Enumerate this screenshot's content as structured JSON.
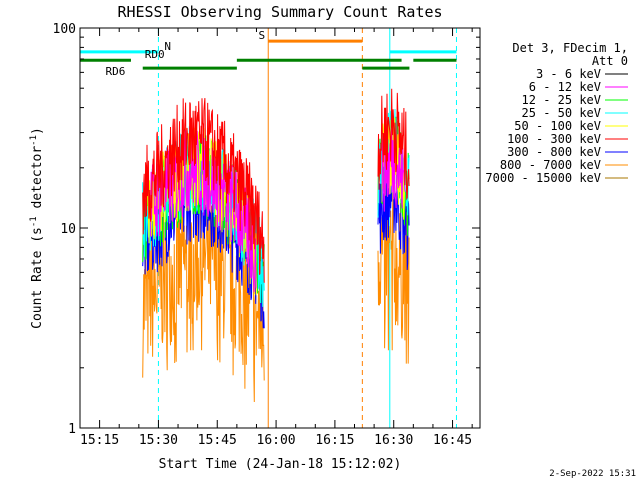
{
  "chart_data": {
    "type": "line",
    "title": "RHESSI Observing Summary Count Rates",
    "xlabel": "Start Time (24-Jan-18 15:12:02)",
    "ylabel_main": "Count Rate (s",
    "ylabel_sup1": "-1",
    "ylabel_mid": " detector",
    "ylabel_sup2": "-1",
    "ylabel_end": ")",
    "y_scale": "log",
    "ylim": [
      1,
      100
    ],
    "xlim": [
      "15:10",
      "16:52"
    ],
    "x_ticks": [
      "15:15",
      "15:30",
      "15:45",
      "16:00",
      "16:15",
      "16:30",
      "16:45"
    ],
    "y_ticks": [
      "1",
      "10",
      "100"
    ],
    "legend_placement": "right",
    "legend_header": [
      "Det 3, FDecim 1,",
      "Att 0"
    ],
    "series": [
      {
        "name": "3 - 6 keV",
        "color": "#000000",
        "segments": []
      },
      {
        "name": "6 - 12 keV",
        "color": "#ff00ff",
        "segments": [
          {
            "t": [
              "15:28",
              "15:33",
              "15:38",
              "15:43",
              "15:48",
              "15:52",
              "15:55"
            ],
            "y": [
              13,
              16,
              20,
              18,
              14,
              10,
              7
            ]
          },
          {
            "t": [
              "16:27",
              "16:30",
              "16:33"
            ],
            "y": [
              19,
              22,
              16
            ]
          }
        ]
      },
      {
        "name": "12 - 25 keV",
        "color": "#00ff00",
        "segments": [
          {
            "t": [
              "15:26",
              "15:30",
              "15:34",
              "15:38",
              "15:42",
              "15:46",
              "15:50",
              "15:54",
              "15:57"
            ],
            "y": [
              10,
              13,
              16,
              19,
              18,
              15,
              12,
              9,
              6
            ]
          },
          {
            "t": [
              "16:26",
              "16:28",
              "16:30",
              "16:32",
              "16:34"
            ],
            "y": [
              17,
              22,
              24,
              19,
              14
            ]
          }
        ]
      },
      {
        "name": "25 - 50 keV",
        "color": "#00ffff",
        "segments": [
          {
            "t": [
              "15:26",
              "15:30",
              "15:34",
              "15:38",
              "15:42",
              "15:46",
              "15:50",
              "15:54",
              "15:57"
            ],
            "y": [
              11,
              14,
              17,
              20,
              19,
              16,
              12,
              9,
              6
            ]
          },
          {
            "t": [
              "16:26",
              "16:28",
              "16:30",
              "16:32",
              "16:34"
            ],
            "y": [
              18,
              23,
              25,
              20,
              15
            ]
          }
        ]
      },
      {
        "name": "50 - 100 keV",
        "color": "#ffff00",
        "segments": [
          {
            "t": [
              "15:27",
              "15:31",
              "15:35",
              "15:39",
              "15:43",
              "15:47",
              "15:51",
              "15:55"
            ],
            "y": [
              12,
              15,
              18,
              21,
              19,
              15,
              11,
              7
            ]
          },
          {
            "t": [
              "16:27",
              "16:30",
              "16:33"
            ],
            "y": [
              20,
              24,
              17
            ]
          }
        ]
      },
      {
        "name": "100 - 300 keV",
        "color": "#ff0000",
        "segments": [
          {
            "t": [
              "15:26",
              "15:30",
              "15:34",
              "15:38",
              "15:42",
              "15:46",
              "15:50",
              "15:54",
              "15:57"
            ],
            "y": [
              15,
              19,
              24,
              29,
              27,
              22,
              17,
              12,
              8
            ]
          },
          {
            "t": [
              "16:26",
              "16:28",
              "16:30",
              "16:32",
              "16:34"
            ],
            "y": [
              25,
              31,
              33,
              27,
              20
            ]
          }
        ]
      },
      {
        "name": "300 - 800 keV",
        "color": "#0000ff",
        "segments": [
          {
            "t": [
              "15:26",
              "15:30",
              "15:34",
              "15:38",
              "15:42",
              "15:46",
              "15:50",
              "15:54",
              "15:57"
            ],
            "y": [
              8,
              10,
              12,
              14,
              14,
              12,
              9,
              7,
              5
            ]
          },
          {
            "t": [
              "16:26",
              "16:28",
              "16:30",
              "16:32",
              "16:34"
            ],
            "y": [
              11,
              14,
              15,
              12,
              9
            ]
          }
        ]
      },
      {
        "name": "800 - 7000 keV",
        "color": "#ff8c00",
        "segments": [
          {
            "t": [
              "15:26",
              "15:30",
              "15:34",
              "15:38",
              "15:42",
              "15:46",
              "15:50",
              "15:54",
              "15:57"
            ],
            "y": [
              4,
              5,
              6,
              7,
              7,
              6,
              5,
              4,
              3
            ]
          },
          {
            "t": [
              "16:26",
              "16:28",
              "16:30",
              "16:32",
              "16:34"
            ],
            "y": [
              8,
              7,
              7,
              6,
              6
            ]
          }
        ]
      },
      {
        "name": "7000 - 15000 keV",
        "color": "#aa7700",
        "segments": []
      }
    ],
    "annotations": {
      "bars": [
        {
          "label": "N",
          "color": "#00ffff",
          "y": 76,
          "t0": "15:10",
          "t1": "15:30",
          "label_t": "15:31"
        },
        {
          "label": "",
          "color": "#00ffff",
          "y": 76,
          "t0": "16:29",
          "t1": "16:46",
          "label_t": ""
        },
        {
          "label": "RD0",
          "color": "#008000",
          "y": 69,
          "t0": "15:10",
          "t1": "15:23",
          "label_t": "15:26"
        },
        {
          "label": "",
          "color": "#008000",
          "y": 69,
          "t0": "15:50",
          "t1": "16:32",
          "label_t": ""
        },
        {
          "label": "",
          "color": "#008000",
          "y": 69,
          "t0": "16:35",
          "t1": "16:46",
          "label_t": ""
        },
        {
          "label": "RD6",
          "color": "#008000",
          "y": 63,
          "t0": "15:26",
          "t1": "15:50",
          "label_t": "15:16"
        },
        {
          "label": "",
          "color": "#008000",
          "y": 63,
          "t0": "16:22",
          "t1": "16:34",
          "label_t": ""
        },
        {
          "label": "S",
          "color": "#ff8000",
          "y": 86,
          "t0": "15:58",
          "t1": "16:22",
          "label_t": "15:55"
        }
      ],
      "vlines": [
        {
          "t": "15:10",
          "color": "#00ffff",
          "dash": false
        },
        {
          "t": "15:30",
          "color": "#00ffff",
          "dash": true
        },
        {
          "t": "16:29",
          "color": "#00ffff",
          "dash": false
        },
        {
          "t": "16:46",
          "color": "#00ffff",
          "dash": true
        },
        {
          "t": "15:58",
          "color": "#ff8000",
          "dash": false
        },
        {
          "t": "16:22",
          "color": "#ff8000",
          "dash": true
        }
      ]
    }
  },
  "footer_date": "2-Sep-2022 15:31"
}
